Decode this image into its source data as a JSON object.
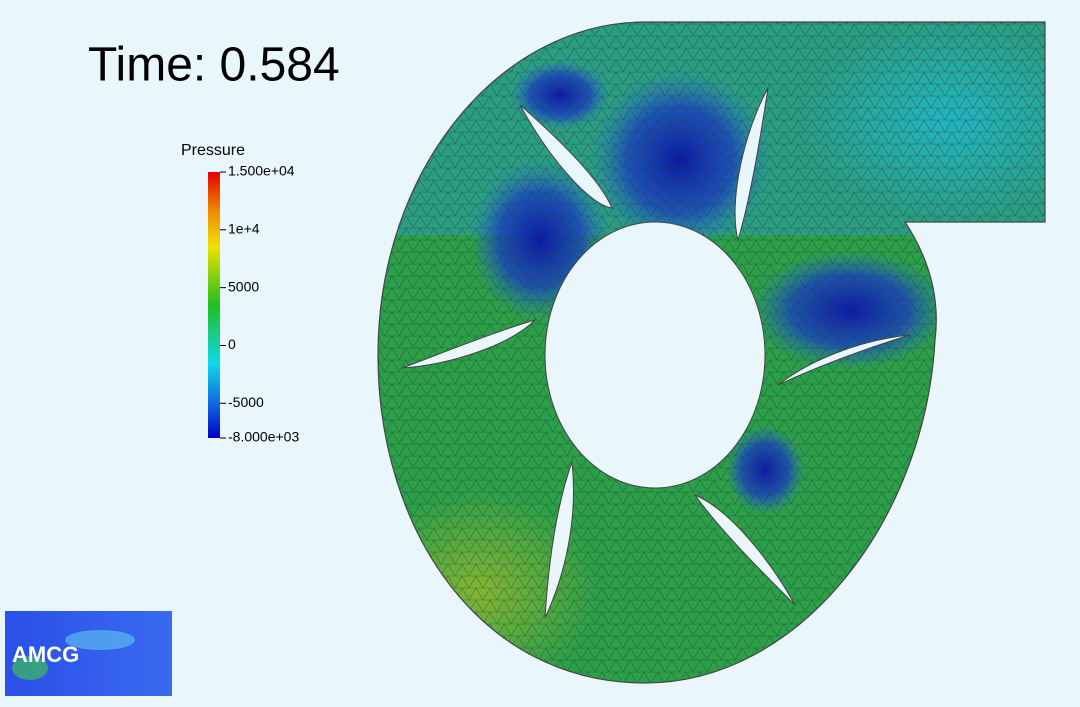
{
  "time_label": "Time: 0.584",
  "colorbar": {
    "title": "Pressure",
    "range": [
      -8000,
      15000
    ],
    "ticks": [
      {
        "value": 15000,
        "label": "1.500e+04"
      },
      {
        "value": 10000,
        "label": "1e+4"
      },
      5000,
      0,
      -5000,
      {
        "value": -8000,
        "label": "-8.000e+03"
      }
    ]
  },
  "logo": "AMCG"
}
